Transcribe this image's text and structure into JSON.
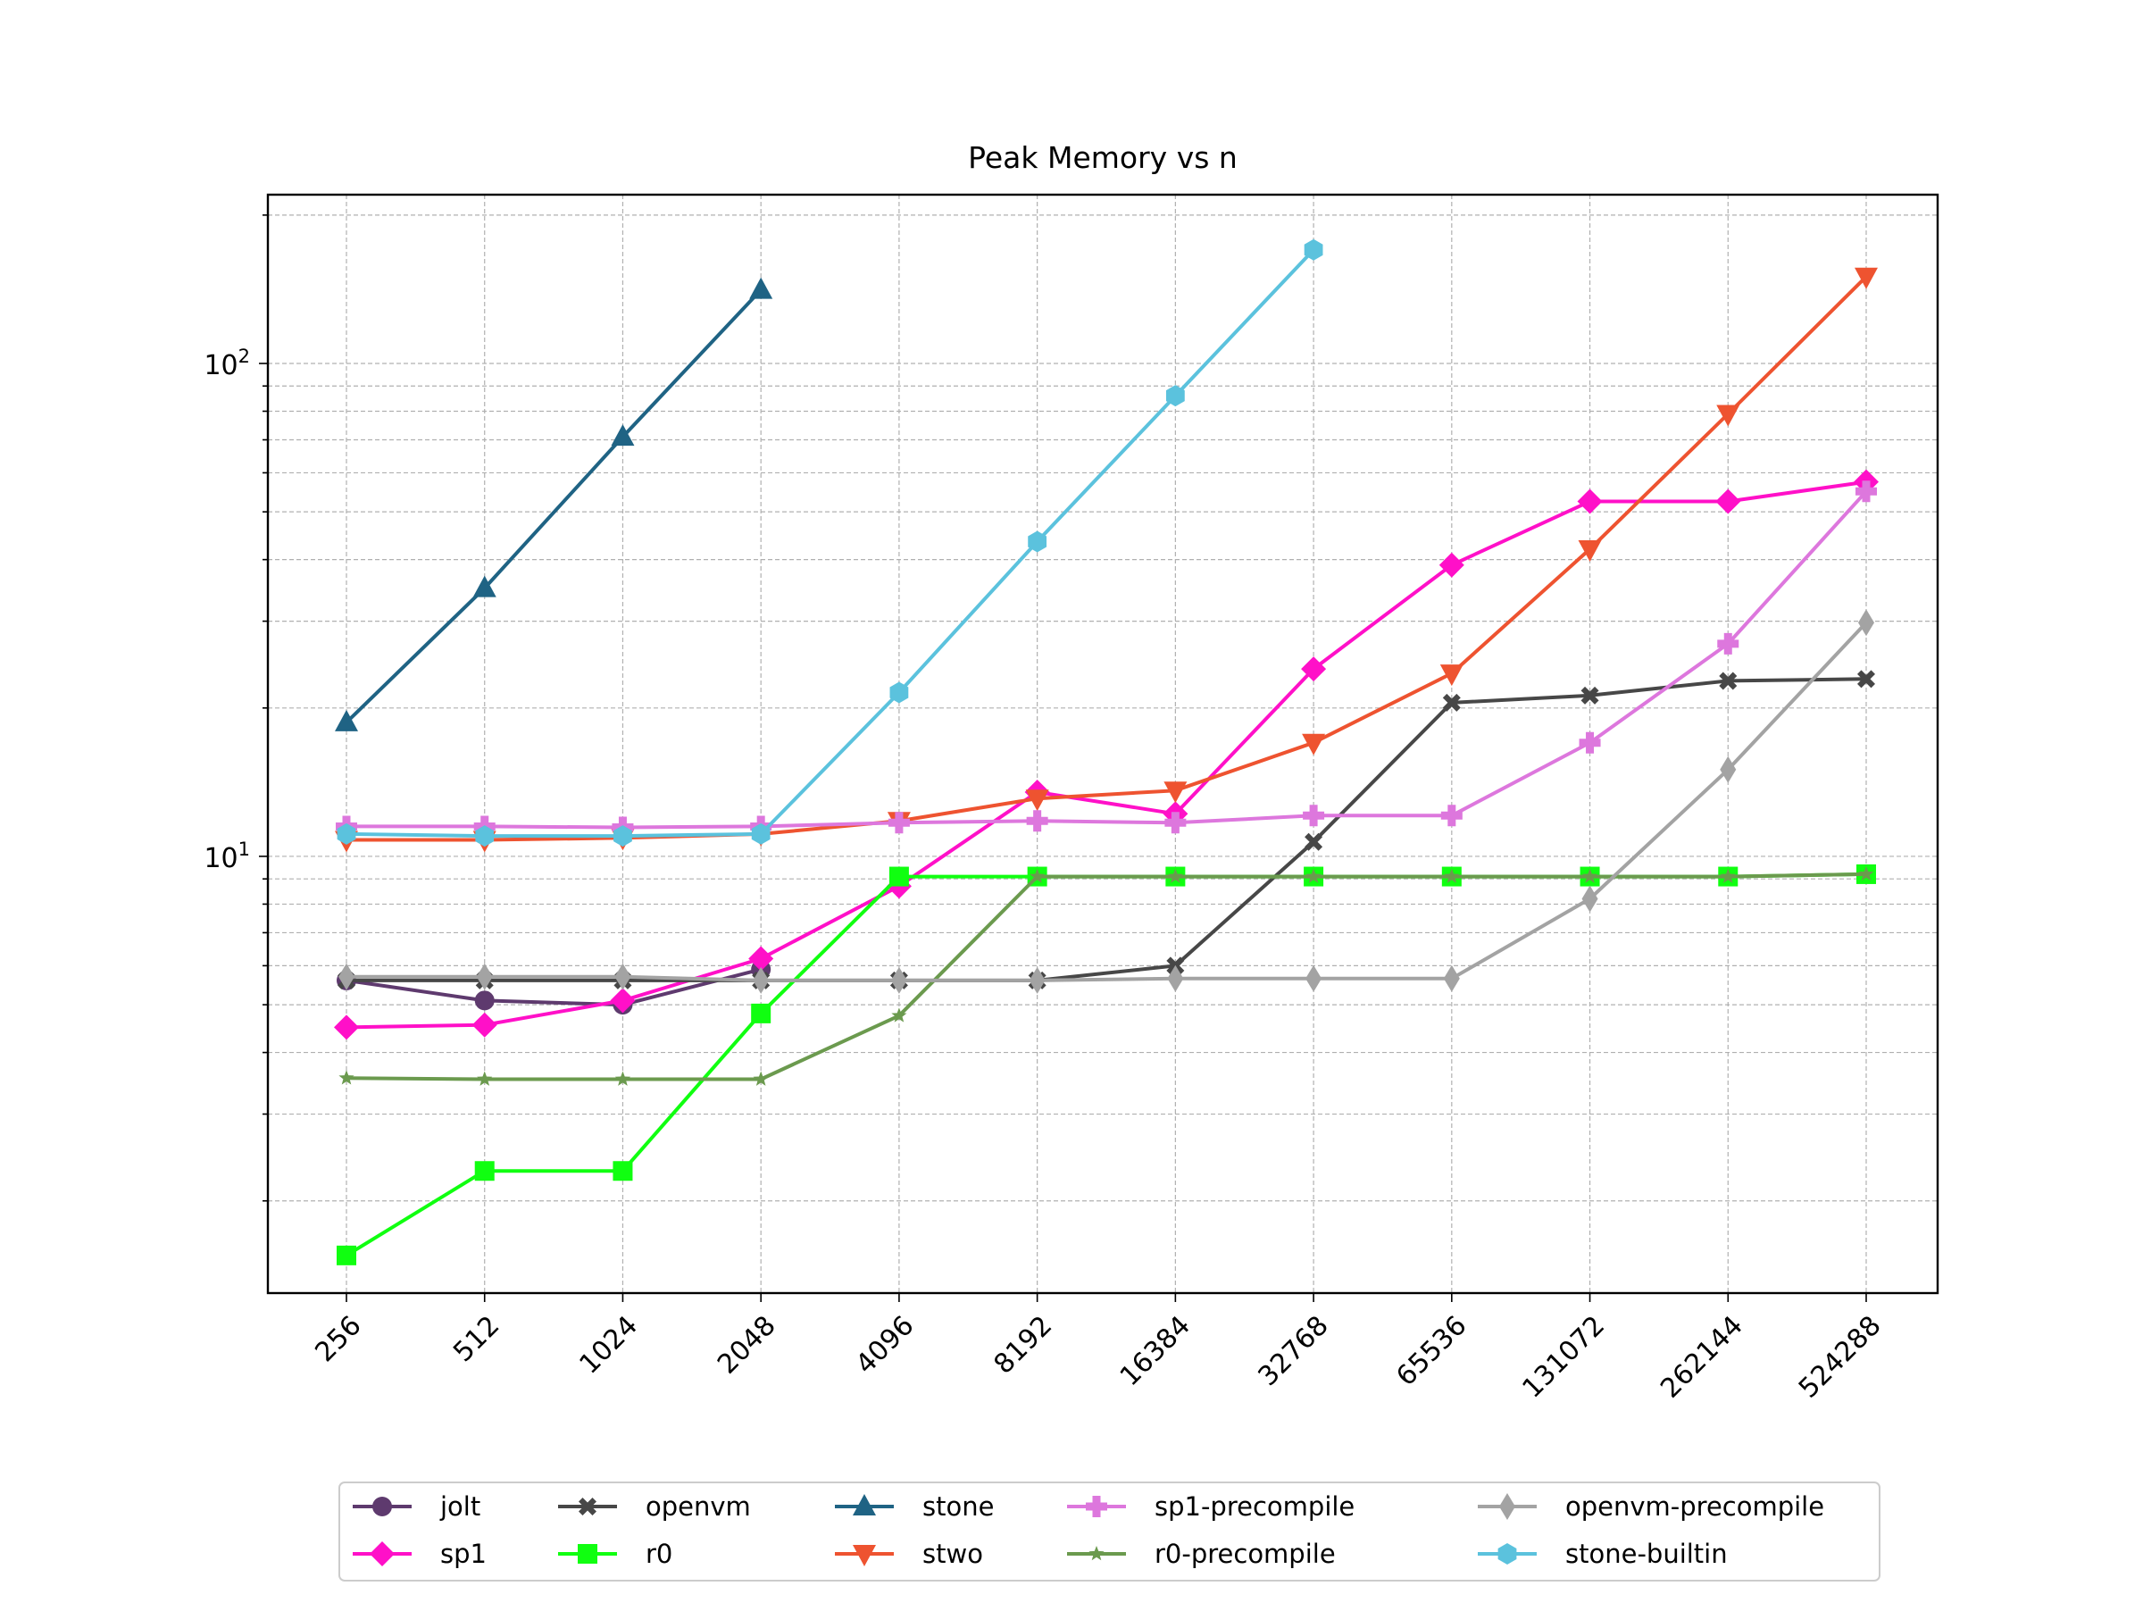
{
  "chart_data": {
    "type": "line",
    "title": "Peak Memory vs n",
    "xlabel": "",
    "ylabel": "",
    "yscale": "log",
    "ylim": [
      1.3,
      220
    ],
    "grid": true,
    "legend_position": "bottom-center",
    "categories": [
      "256",
      "512",
      "1024",
      "2048",
      "4096",
      "8192",
      "16384",
      "32768",
      "65536",
      "131072",
      "262144",
      "524288"
    ],
    "y_ticks": [
      {
        "base": "10",
        "exp": "1",
        "value": 10
      },
      {
        "base": "10",
        "exp": "2",
        "value": 100
      }
    ],
    "series": [
      {
        "name": "jolt",
        "color": "#5e3a6e",
        "marker": "circle",
        "values": [
          5.6,
          5.1,
          5.0,
          5.9,
          null,
          null,
          null,
          null,
          null,
          null,
          null,
          null
        ]
      },
      {
        "name": "sp1",
        "color": "#ff10c8",
        "marker": "diamond",
        "values": [
          4.5,
          4.55,
          5.1,
          6.2,
          8.7,
          13.5,
          12.2,
          24.0,
          39.0,
          52.5,
          52.5,
          57.5
        ]
      },
      {
        "name": "openvm",
        "color": "#474747",
        "marker": "x",
        "values": [
          5.6,
          5.6,
          5.6,
          5.6,
          5.6,
          5.6,
          6.0,
          10.7,
          20.5,
          21.2,
          22.7,
          22.9
        ]
      },
      {
        "name": "r0",
        "color": "#10ff10",
        "marker": "square",
        "values": [
          1.55,
          2.3,
          2.3,
          4.8,
          9.1,
          9.1,
          9.1,
          9.1,
          9.1,
          9.1,
          9.1,
          9.2
        ]
      },
      {
        "name": "stone",
        "color": "#1f6384",
        "marker": "triangle-up",
        "values": [
          18.7,
          35.0,
          71.0,
          141.0,
          null,
          null,
          null,
          null,
          null,
          null,
          null,
          null
        ]
      },
      {
        "name": "stwo",
        "color": "#ee5330",
        "marker": "triangle-down",
        "values": [
          10.8,
          10.8,
          10.9,
          11.1,
          11.8,
          13.1,
          13.6,
          17.0,
          23.5,
          42.0,
          79.0,
          150.0
        ]
      },
      {
        "name": "sp1-precompile",
        "color": "#dd77dd",
        "marker": "plus",
        "values": [
          11.5,
          11.5,
          11.45,
          11.5,
          11.7,
          11.8,
          11.7,
          12.1,
          12.1,
          17.0,
          27.0,
          55.0
        ]
      },
      {
        "name": "r0-precompile",
        "color": "#6b9a4e",
        "marker": "star",
        "values": [
          3.55,
          3.53,
          3.53,
          3.53,
          4.75,
          9.1,
          9.1,
          9.1,
          9.1,
          9.1,
          9.1,
          9.2
        ]
      },
      {
        "name": "openvm-precompile",
        "color": "#a3a3a3",
        "marker": "thin-diamond",
        "values": [
          5.7,
          5.7,
          5.7,
          5.6,
          5.6,
          5.6,
          5.65,
          5.65,
          5.65,
          8.2,
          15.0,
          29.8
        ]
      },
      {
        "name": "stone-builtin",
        "color": "#5bc2dd",
        "marker": "hexagon",
        "values": [
          11.1,
          11.0,
          11.0,
          11.1,
          21.5,
          43.5,
          86.0,
          170.0,
          null,
          null,
          null,
          null
        ]
      }
    ]
  }
}
